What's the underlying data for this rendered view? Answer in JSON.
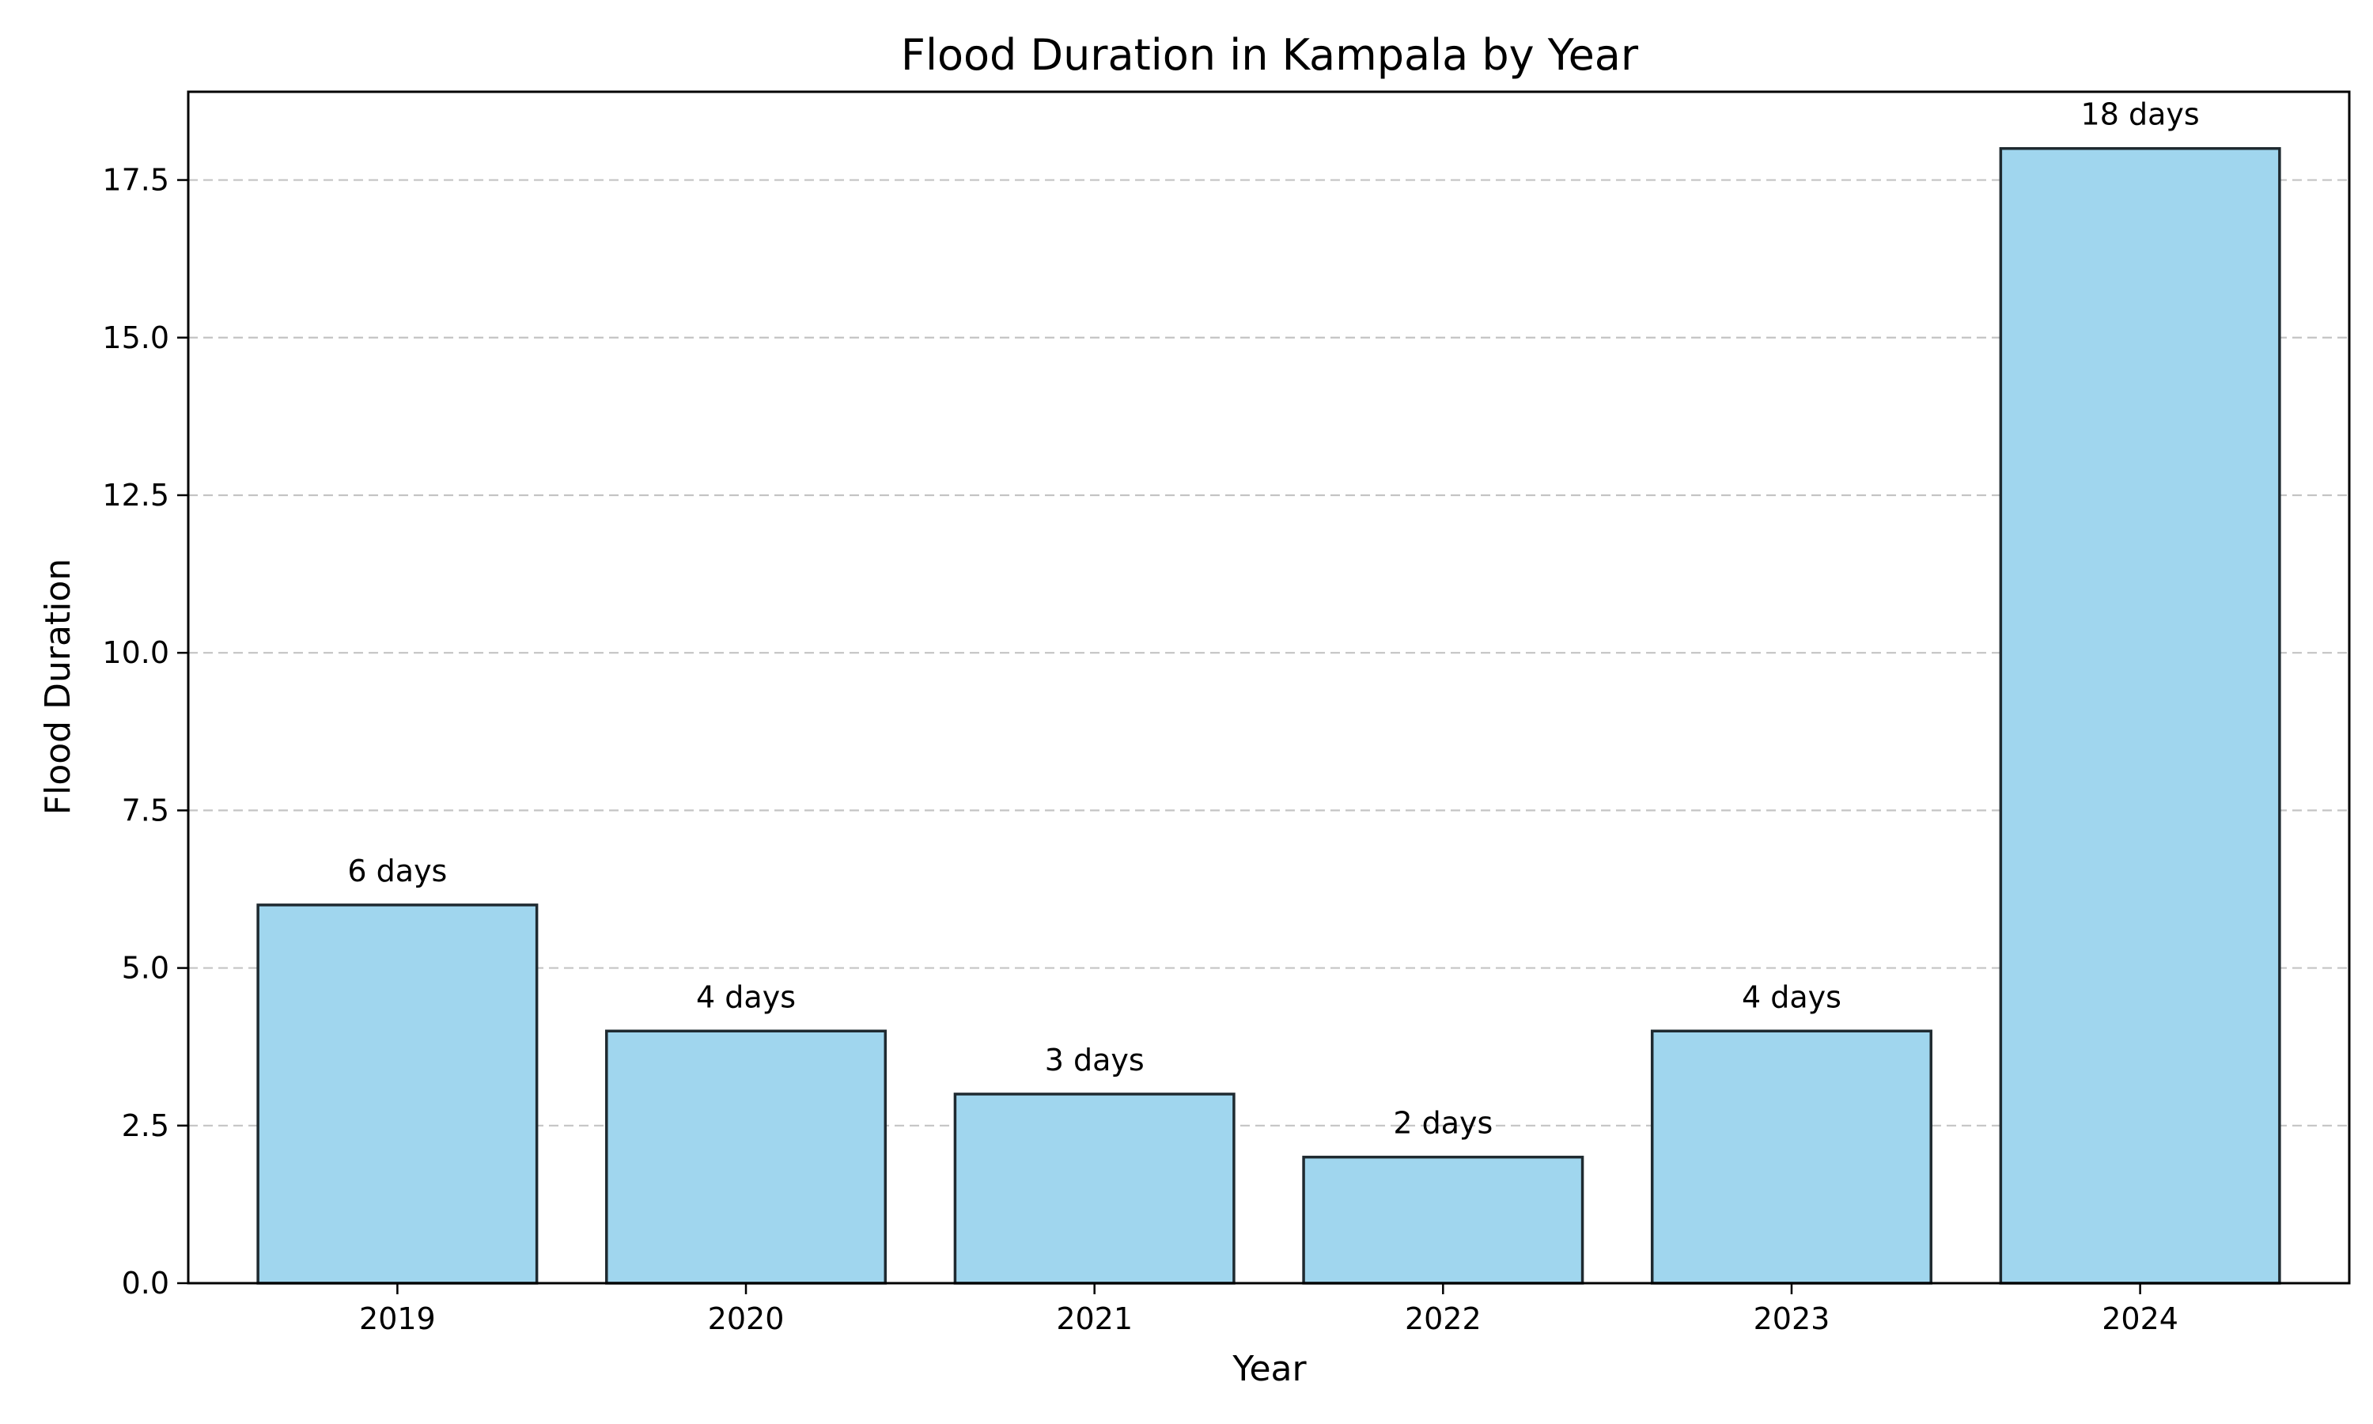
{
  "chart_data": {
    "type": "bar",
    "title": "Flood Duration in Kampala by Year",
    "xlabel": "Year",
    "ylabel": "Flood Duration",
    "categories": [
      "2019",
      "2020",
      "2021",
      "2022",
      "2023",
      "2024"
    ],
    "values": [
      6,
      4,
      3,
      2,
      4,
      18
    ],
    "data_labels": [
      "6 days",
      "4 days",
      "3 days",
      "2 days",
      "4 days",
      "18 days"
    ],
    "ylim": [
      0,
      18.9
    ],
    "yticks": [
      0,
      2.5,
      5,
      7.5,
      10,
      12.5,
      15,
      17.5
    ],
    "ytick_labels": [
      "0.0",
      "2.5",
      "5.0",
      "7.5",
      "10.0",
      "12.5",
      "15.0",
      "17.5"
    ],
    "grid": "y-dashed",
    "legend": "none",
    "colors": {
      "bar_fill": "#a0d6ee",
      "bar_edge": "#1f2a30",
      "grid": "#c4c4c4",
      "axis": "#000000"
    }
  }
}
